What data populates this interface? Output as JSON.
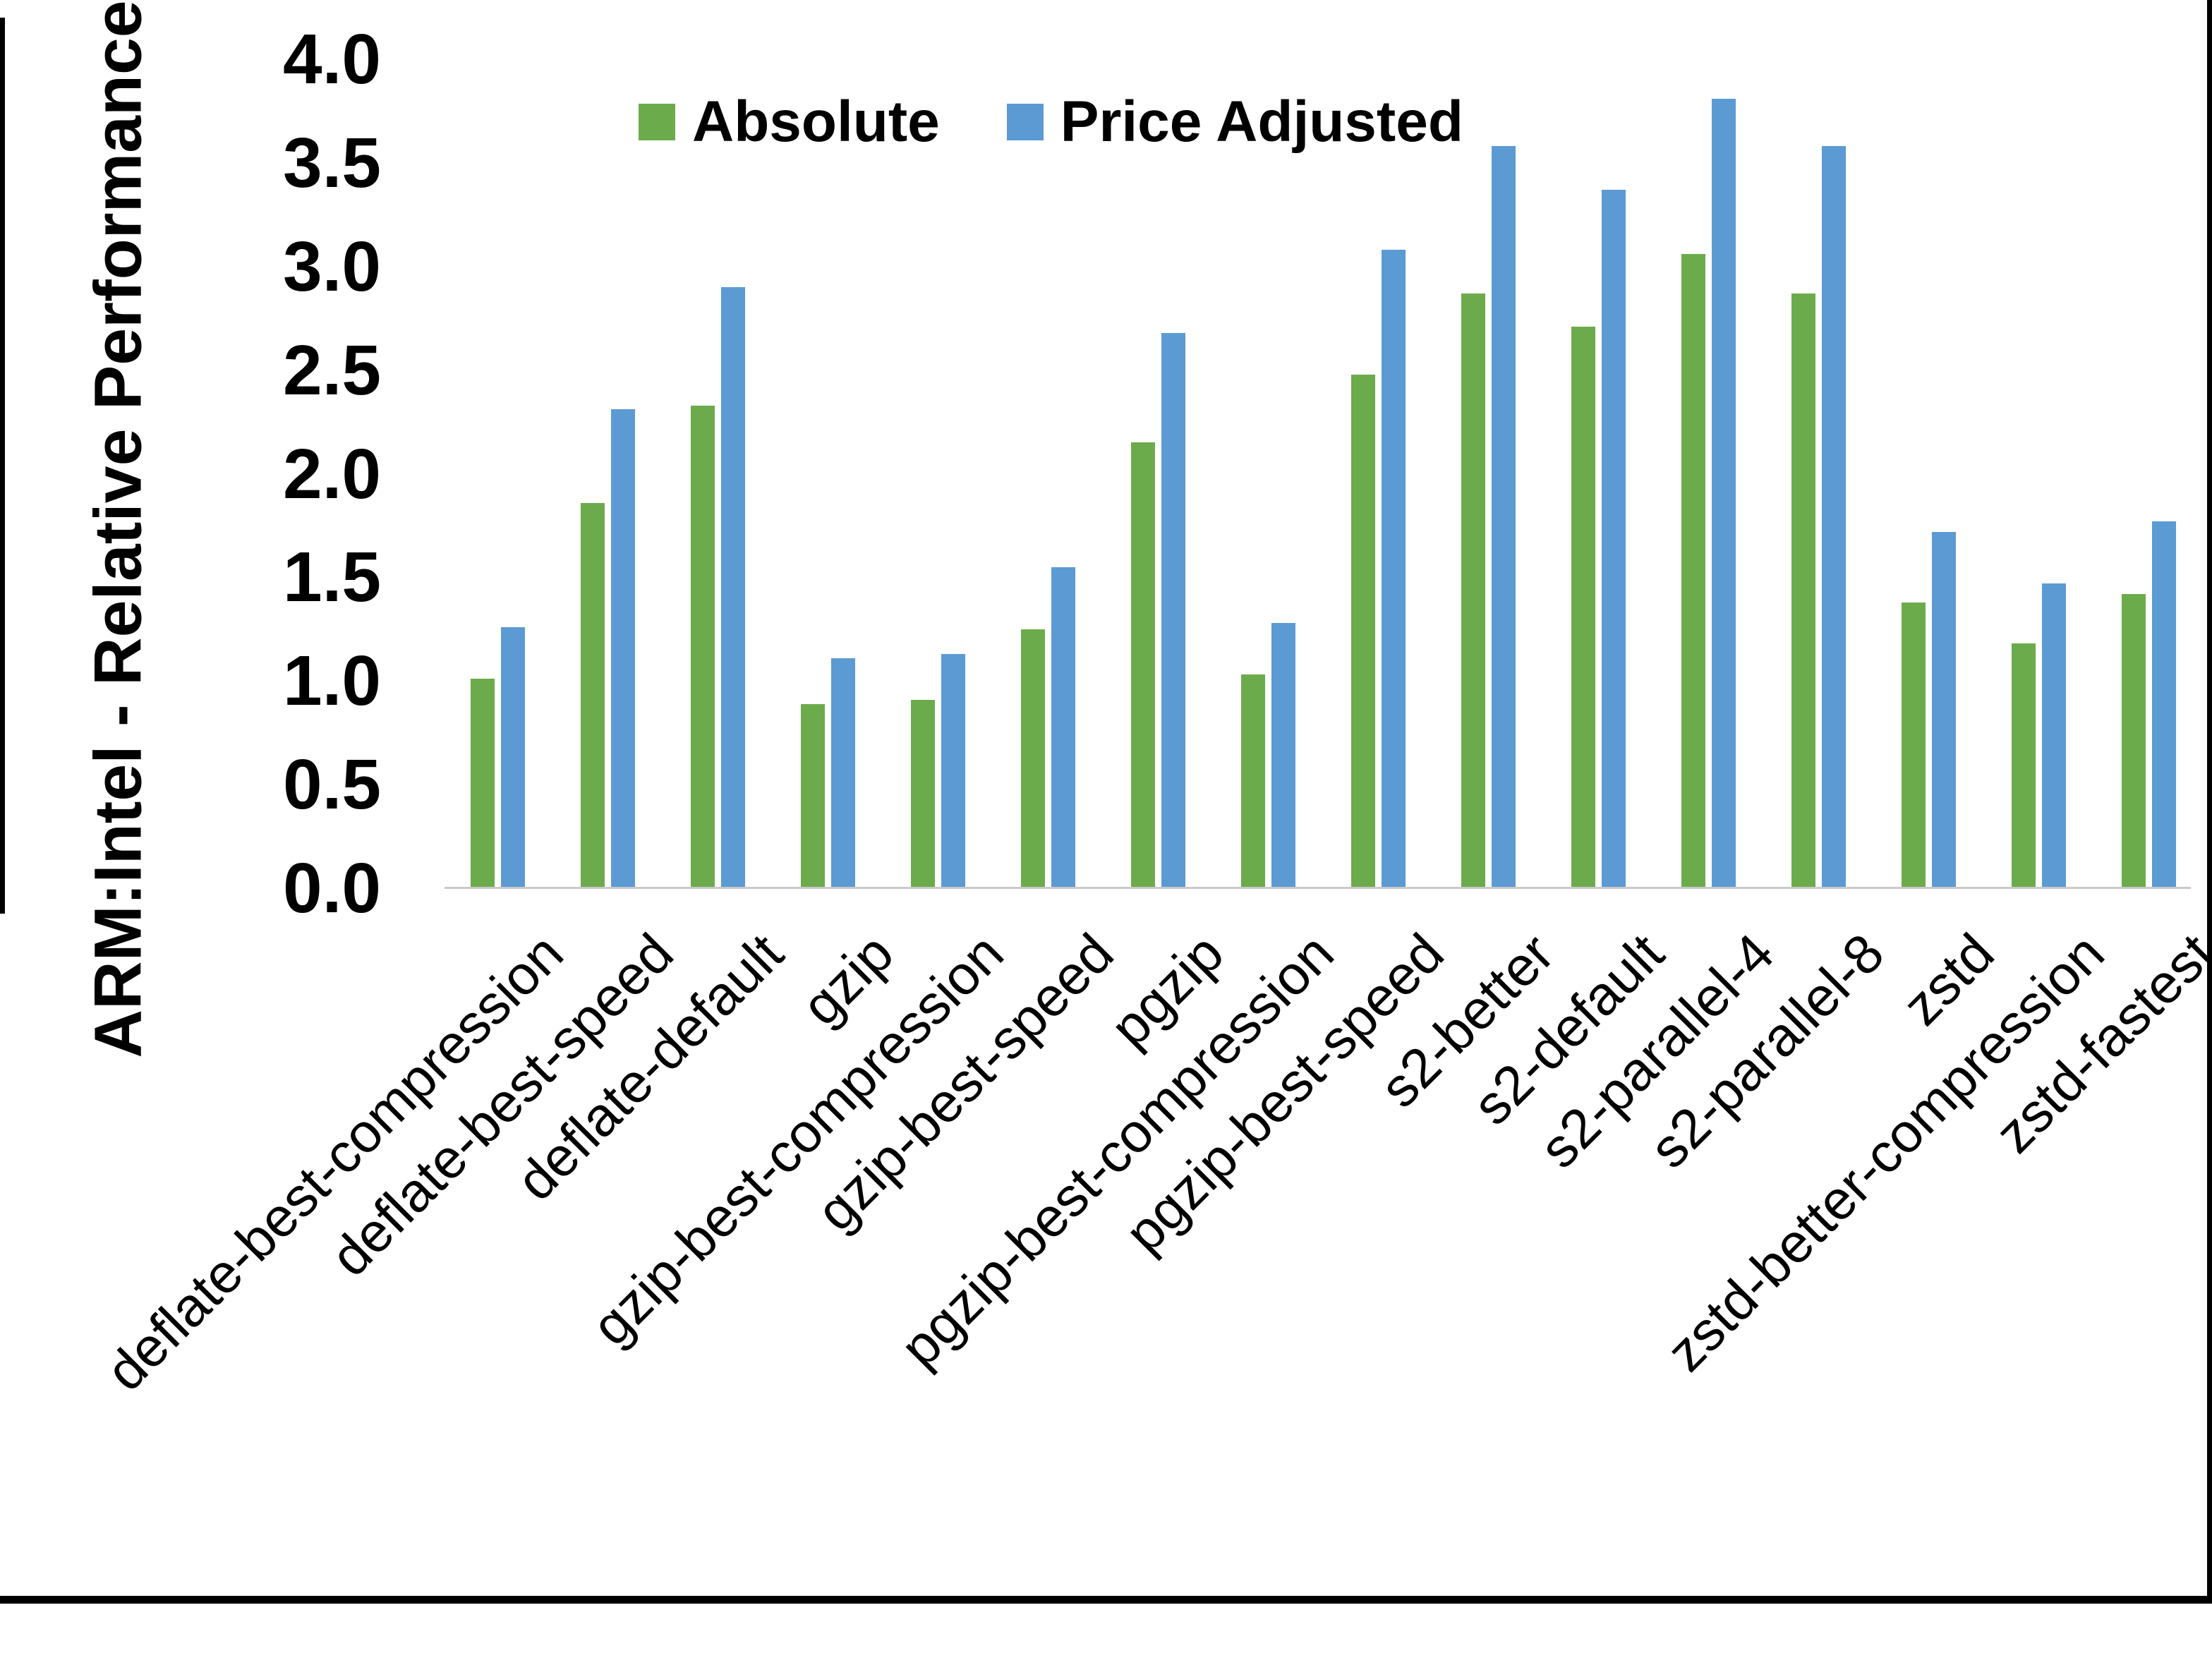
{
  "chart_data": {
    "type": "bar",
    "title": "",
    "ylabel": "ARM:Intel - Relative Performance",
    "xlabel": "",
    "ylim": [
      0.0,
      4.0
    ],
    "ytick_step": 0.5,
    "ytick_labels": [
      "0.0",
      "0.5",
      "1.0",
      "1.5",
      "2.0",
      "2.5",
      "3.0",
      "3.5",
      "4.0"
    ],
    "grid": false,
    "legend_position": "top-center",
    "categories": [
      "deflate-best-compression",
      "deflate-best-speed",
      "deflate-default",
      "gzip",
      "gzip-best-compression",
      "gzip-best-speed",
      "pgzip",
      "pgzip-best-compression",
      "pgzip-best-speed",
      "s2-better",
      "s2-default",
      "s2-parallel-4",
      "s2-parallel-8",
      "zstd",
      "zstd-better-compression",
      "zstd-fastest"
    ],
    "series": [
      {
        "name": "Absolute",
        "color": "#6cab4c",
        "values": [
          1.01,
          1.86,
          2.33,
          0.89,
          0.91,
          1.25,
          2.15,
          1.03,
          2.48,
          2.87,
          2.71,
          3.06,
          2.87,
          1.38,
          1.18,
          1.42
        ]
      },
      {
        "name": "Price Adjusted",
        "color": "#5c9ad3",
        "values": [
          1.26,
          2.31,
          2.9,
          1.11,
          1.13,
          1.55,
          2.68,
          1.28,
          3.08,
          3.58,
          3.37,
          3.81,
          3.58,
          1.72,
          1.47,
          1.77
        ]
      }
    ]
  },
  "colors": {
    "axis_line": "#c9c9c9",
    "border": "#000000",
    "background": "#ffffff",
    "text": "#000000"
  }
}
